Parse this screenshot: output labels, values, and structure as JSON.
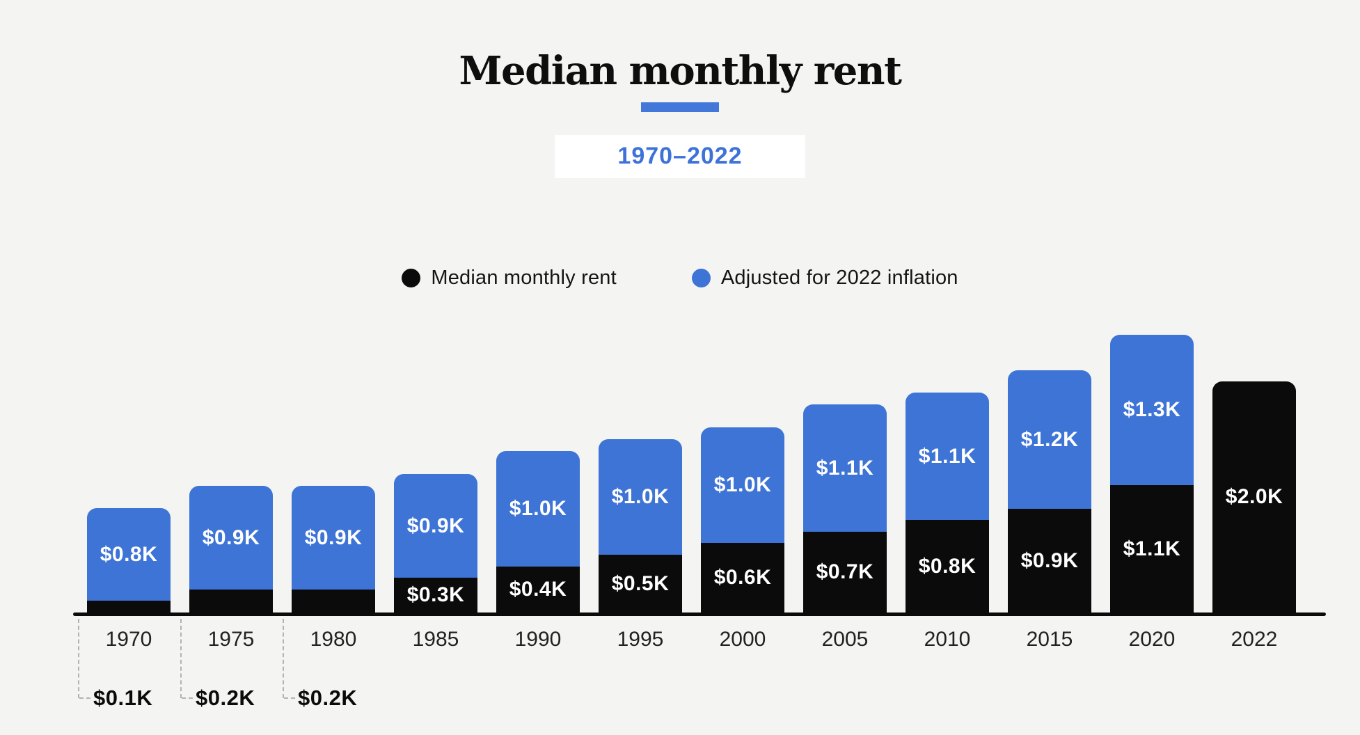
{
  "page": {
    "background": "#f4f4f3"
  },
  "header": {
    "title": "Median monthly rent",
    "subtitle": "1970–2022",
    "accent_color": "#4377d9",
    "subtitle_color": "#3d72d8"
  },
  "legend": {
    "items": [
      {
        "label": "Median monthly rent",
        "color": "#0b0b0b"
      },
      {
        "label": "Adjusted for 2022 inflation",
        "color": "#3e74d6"
      }
    ]
  },
  "chart_data": {
    "type": "bar",
    "stacked": true,
    "title": "Median monthly rent",
    "subtitle": "1970–2022",
    "categories": [
      "1970",
      "1975",
      "1980",
      "1985",
      "1990",
      "1995",
      "2000",
      "2005",
      "2010",
      "2015",
      "2020",
      "2022"
    ],
    "series": [
      {
        "name": "Median monthly rent",
        "color": "#0b0b0b",
        "label_color": "#ffffff",
        "values": [
          0.1,
          0.2,
          0.2,
          0.3,
          0.4,
          0.5,
          0.6,
          0.7,
          0.8,
          0.9,
          1.1,
          2.0
        ],
        "labels": [
          "$0.1K",
          "$0.2K",
          "$0.2K",
          "$0.3K",
          "$0.4K",
          "$0.5K",
          "$0.6K",
          "$0.7K",
          "$0.8K",
          "$0.9K",
          "$1.1K",
          "$2.0K"
        ]
      },
      {
        "name": "Adjusted for 2022 inflation",
        "color": "#3e74d6",
        "label_color": "#ffffff",
        "values": [
          0.8,
          0.9,
          0.9,
          0.9,
          1.0,
          1.0,
          1.0,
          1.1,
          1.1,
          1.2,
          1.3,
          null
        ],
        "labels": [
          "$0.8K",
          "$0.9K",
          "$0.9K",
          "$0.9K",
          "$1.0K",
          "$1.0K",
          "$1.0K",
          "$1.1K",
          "$1.1K",
          "$1.2K",
          "$1.3K",
          null
        ]
      }
    ],
    "value_unit": "thousand USD per month",
    "ylim": [
      0,
      2.4
    ],
    "grid": false,
    "legend_position": "top",
    "outside_label_categories": [
      "1970",
      "1975",
      "1980"
    ]
  }
}
